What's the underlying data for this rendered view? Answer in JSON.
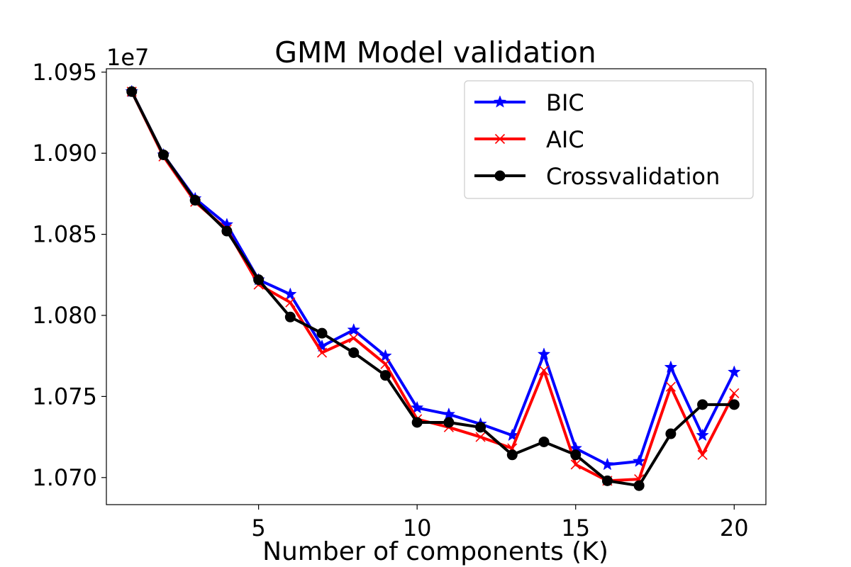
{
  "chart_data": {
    "type": "line",
    "title": "GMM Model validation",
    "xlabel": "Number of components (K)",
    "ylabel": "",
    "y_offset_label": "1e7",
    "x": [
      1,
      2,
      3,
      4,
      5,
      6,
      7,
      8,
      9,
      10,
      11,
      12,
      13,
      14,
      15,
      16,
      17,
      18,
      19,
      20
    ],
    "xlim": [
      0.2,
      21.0
    ],
    "ylim": [
      1.06833,
      1.09521
    ],
    "x_ticks": [
      5,
      10,
      15,
      20
    ],
    "y_ticks": [
      1.07,
      1.075,
      1.08,
      1.085,
      1.09,
      1.095
    ],
    "y_tick_labels": [
      "1.070",
      "1.075",
      "1.080",
      "1.085",
      "1.090",
      "1.095"
    ],
    "grid": false,
    "legend": {
      "position": "top-right"
    },
    "series": [
      {
        "name": "BIC",
        "color": "#0000ff",
        "marker": "star",
        "values": [
          1.0938,
          1.0899,
          1.0872,
          1.0856,
          1.0822,
          1.0813,
          1.0781,
          1.0791,
          1.0775,
          1.0743,
          1.0739,
          1.0733,
          1.0726,
          1.0776,
          1.0718,
          1.0708,
          1.071,
          1.0768,
          1.0726,
          1.0765
        ]
      },
      {
        "name": "AIC",
        "color": "#ff0000",
        "marker": "x",
        "values": [
          1.0938,
          1.0898,
          1.087,
          1.0853,
          1.0819,
          1.0808,
          1.0777,
          1.0786,
          1.077,
          1.0736,
          1.0731,
          1.0725,
          1.0718,
          1.0766,
          1.0708,
          1.0698,
          1.0699,
          1.0756,
          1.0714,
          1.0752
        ]
      },
      {
        "name": "Crossvalidation",
        "color": "#000000",
        "marker": "circle",
        "values": [
          1.0938,
          1.0899,
          1.0871,
          1.0852,
          1.0822,
          1.0799,
          1.0789,
          1.0777,
          1.0763,
          1.0734,
          1.0734,
          1.0731,
          1.0714,
          1.0722,
          1.0714,
          1.0698,
          1.0695,
          1.0727,
          1.0745,
          1.0745
        ]
      }
    ]
  }
}
